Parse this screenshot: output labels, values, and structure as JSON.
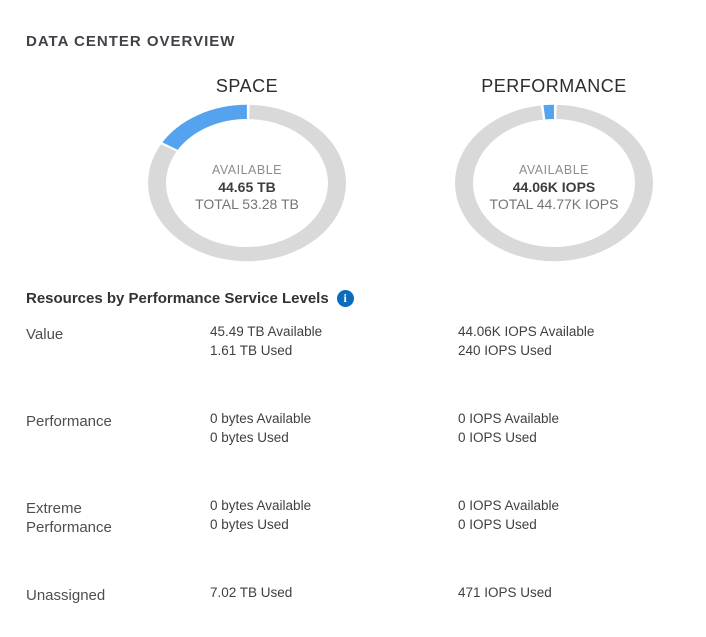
{
  "page": {
    "title": "DATA CENTER OVERVIEW"
  },
  "colors": {
    "accent_blue": "#55a3ee",
    "ring_gray": "#d9d9d9",
    "info_blue": "#0b6cbb"
  },
  "charts": [
    {
      "title": "SPACE",
      "center": {
        "available_label": "AVAILABLE",
        "available_value": "44.65 TB",
        "total_label": "TOTAL 53.28 TB"
      }
    },
    {
      "title": "PERFORMANCE",
      "center": {
        "available_label": "AVAILABLE",
        "available_value": "44.06K IOPS",
        "total_label": "TOTAL 44.77K IOPS"
      }
    }
  ],
  "chart_data": [
    {
      "type": "pie",
      "title": "SPACE",
      "unit": "TB",
      "total": 53.28,
      "slices": [
        {
          "label": "Used",
          "value": 8.63,
          "color": "#55a3ee"
        },
        {
          "label": "Available",
          "value": 44.65,
          "color": "#d9d9d9"
        }
      ],
      "center_text": [
        "AVAILABLE",
        "44.65 TB",
        "TOTAL 53.28 TB"
      ],
      "legend": "none"
    },
    {
      "type": "pie",
      "title": "PERFORMANCE",
      "unit": "IOPS",
      "total": 44770,
      "slices": [
        {
          "label": "Used",
          "value": 710,
          "color": "#55a3ee"
        },
        {
          "label": "Available",
          "value": 44060,
          "color": "#d9d9d9"
        }
      ],
      "center_text": [
        "AVAILABLE",
        "44.06K IOPS",
        "TOTAL 44.77K IOPS"
      ],
      "legend": "none"
    }
  ],
  "section": {
    "heading": "Resources by Performance Service Levels",
    "info_glyph": "i"
  },
  "rows": [
    {
      "label": "Value",
      "space_lines": [
        "45.49 TB Available",
        "1.61 TB Used"
      ],
      "iops_lines": [
        "44.06K IOPS Available",
        "240 IOPS Used"
      ]
    },
    {
      "label": "Performance",
      "space_lines": [
        "0 bytes Available",
        "0 bytes Used"
      ],
      "iops_lines": [
        "0 IOPS Available",
        "0 IOPS Used"
      ]
    },
    {
      "label": "Extreme Performance",
      "space_lines": [
        "0 bytes Available",
        "0 bytes Used"
      ],
      "iops_lines": [
        "0 IOPS Available",
        "0 IOPS Used"
      ]
    },
    {
      "label": "Unassigned",
      "space_lines": [
        "7.02 TB Used"
      ],
      "iops_lines": [
        "471 IOPS Used"
      ]
    }
  ]
}
